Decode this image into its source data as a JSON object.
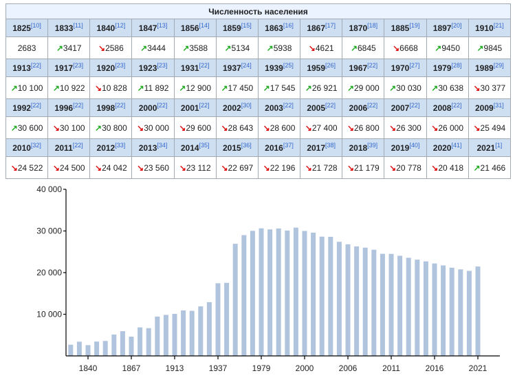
{
  "table": {
    "title": "Численность населения",
    "colors": {
      "up": "#22aa22",
      "down": "#dd1111",
      "header_bg": "#cedff2"
    },
    "entries": [
      {
        "year": "1825",
        "ref": "[10]",
        "value": "2683",
        "trend": ""
      },
      {
        "year": "1833",
        "ref": "[11]",
        "value": "3417",
        "trend": "up"
      },
      {
        "year": "1840",
        "ref": "[12]",
        "value": "2586",
        "trend": "down"
      },
      {
        "year": "1847",
        "ref": "[13]",
        "value": "3444",
        "trend": "up"
      },
      {
        "year": "1856",
        "ref": "[14]",
        "value": "3588",
        "trend": "up"
      },
      {
        "year": "1859",
        "ref": "[15]",
        "value": "5134",
        "trend": "up"
      },
      {
        "year": "1863",
        "ref": "[16]",
        "value": "5938",
        "trend": "up"
      },
      {
        "year": "1867",
        "ref": "[17]",
        "value": "4621",
        "trend": "down"
      },
      {
        "year": "1870",
        "ref": "[18]",
        "value": "6845",
        "trend": "up"
      },
      {
        "year": "1885",
        "ref": "[19]",
        "value": "6668",
        "trend": "down"
      },
      {
        "year": "1897",
        "ref": "[20]",
        "value": "9450",
        "trend": "up"
      },
      {
        "year": "1910",
        "ref": "[21]",
        "value": "9845",
        "trend": "up"
      },
      {
        "year": "1913",
        "ref": "[22]",
        "value": "10 100",
        "trend": "up"
      },
      {
        "year": "1917",
        "ref": "[23]",
        "value": "10 922",
        "trend": "up"
      },
      {
        "year": "1920",
        "ref": "[23]",
        "value": "10 828",
        "trend": "down"
      },
      {
        "year": "1923",
        "ref": "[23]",
        "value": "11 892",
        "trend": "up"
      },
      {
        "year": "1931",
        "ref": "[22]",
        "value": "12 900",
        "trend": "up"
      },
      {
        "year": "1937",
        "ref": "[24]",
        "value": "17 450",
        "trend": "up"
      },
      {
        "year": "1939",
        "ref": "[25]",
        "value": "17 545",
        "trend": "up"
      },
      {
        "year": "1959",
        "ref": "[26]",
        "value": "26 921",
        "trend": "up"
      },
      {
        "year": "1967",
        "ref": "[22]",
        "value": "29 000",
        "trend": "up"
      },
      {
        "year": "1970",
        "ref": "[27]",
        "value": "30 030",
        "trend": "up"
      },
      {
        "year": "1979",
        "ref": "[28]",
        "value": "30 638",
        "trend": "up"
      },
      {
        "year": "1989",
        "ref": "[29]",
        "value": "30 377",
        "trend": "down"
      },
      {
        "year": "1992",
        "ref": "[22]",
        "value": "30 600",
        "trend": "up"
      },
      {
        "year": "1996",
        "ref": "[22]",
        "value": "30 100",
        "trend": "down"
      },
      {
        "year": "1998",
        "ref": "[22]",
        "value": "30 800",
        "trend": "up"
      },
      {
        "year": "2000",
        "ref": "[22]",
        "value": "30 000",
        "trend": "down"
      },
      {
        "year": "2001",
        "ref": "[22]",
        "value": "29 600",
        "trend": "down"
      },
      {
        "year": "2002",
        "ref": "[30]",
        "value": "28 643",
        "trend": "down"
      },
      {
        "year": "2003",
        "ref": "[22]",
        "value": "28 600",
        "trend": "down"
      },
      {
        "year": "2005",
        "ref": "[22]",
        "value": "27 400",
        "trend": "down"
      },
      {
        "year": "2006",
        "ref": "[22]",
        "value": "26 800",
        "trend": "down"
      },
      {
        "year": "2007",
        "ref": "[22]",
        "value": "26 300",
        "trend": "down"
      },
      {
        "year": "2008",
        "ref": "[22]",
        "value": "26 000",
        "trend": "down"
      },
      {
        "year": "2009",
        "ref": "[31]",
        "value": "25 494",
        "trend": "down"
      },
      {
        "year": "2010",
        "ref": "[32]",
        "value": "24 522",
        "trend": "down"
      },
      {
        "year": "2011",
        "ref": "[22]",
        "value": "24 500",
        "trend": "down"
      },
      {
        "year": "2012",
        "ref": "[33]",
        "value": "24 042",
        "trend": "down"
      },
      {
        "year": "2013",
        "ref": "[34]",
        "value": "23 560",
        "trend": "down"
      },
      {
        "year": "2014",
        "ref": "[35]",
        "value": "23 112",
        "trend": "down"
      },
      {
        "year": "2015",
        "ref": "[36]",
        "value": "22 697",
        "trend": "down"
      },
      {
        "year": "2016",
        "ref": "[37]",
        "value": "22 196",
        "trend": "down"
      },
      {
        "year": "2017",
        "ref": "[38]",
        "value": "21 728",
        "trend": "down"
      },
      {
        "year": "2018",
        "ref": "[39]",
        "value": "21 179",
        "trend": "down"
      },
      {
        "year": "2019",
        "ref": "[40]",
        "value": "20 778",
        "trend": "down"
      },
      {
        "year": "2020",
        "ref": "[41]",
        "value": "20 418",
        "trend": "down"
      },
      {
        "year": "2021",
        "ref": "[1]",
        "value": "21 466",
        "trend": "up"
      }
    ]
  },
  "chart_data": {
    "type": "bar",
    "categories": [
      "1825",
      "1833",
      "1840",
      "1847",
      "1856",
      "1859",
      "1863",
      "1867",
      "1870",
      "1885",
      "1897",
      "1910",
      "1913",
      "1917",
      "1920",
      "1923",
      "1931",
      "1937",
      "1939",
      "1959",
      "1967",
      "1970",
      "1979",
      "1989",
      "1992",
      "1996",
      "1998",
      "2000",
      "2001",
      "2002",
      "2003",
      "2005",
      "2006",
      "2007",
      "2008",
      "2009",
      "2010",
      "2011",
      "2012",
      "2013",
      "2014",
      "2015",
      "2016",
      "2017",
      "2018",
      "2019",
      "2020",
      "2021"
    ],
    "values": [
      2683,
      3417,
      2586,
      3444,
      3588,
      5134,
      5938,
      4621,
      6845,
      6668,
      9450,
      9845,
      10100,
      10922,
      10828,
      11892,
      12900,
      17450,
      17545,
      26921,
      29000,
      30030,
      30638,
      30377,
      30600,
      30100,
      30800,
      30000,
      29600,
      28643,
      28600,
      27400,
      26800,
      26300,
      26000,
      25494,
      24522,
      24500,
      24042,
      23560,
      23112,
      22697,
      22196,
      21728,
      21179,
      20778,
      20418,
      21466
    ],
    "ylim": [
      0,
      40000
    ],
    "yticks": [
      {
        "value": 10000,
        "label": "10 000"
      },
      {
        "value": 20000,
        "label": "20 000"
      },
      {
        "value": 30000,
        "label": "30 000"
      },
      {
        "value": 40000,
        "label": "40 000"
      }
    ],
    "xticks": [
      "1840",
      "1867",
      "1913",
      "1937",
      "1979",
      "2000",
      "2006",
      "2011",
      "2016",
      "2021"
    ],
    "bar_color": "#b0c4de",
    "grid": false
  }
}
